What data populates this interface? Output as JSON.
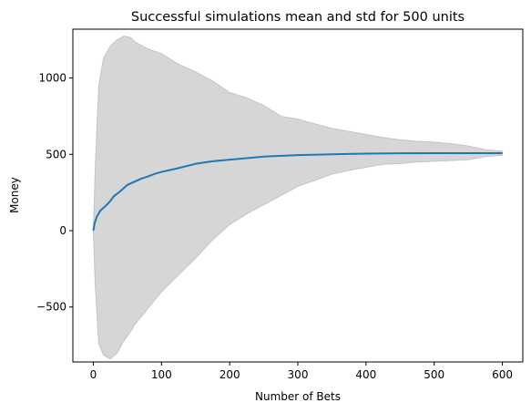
{
  "chart_data": {
    "type": "line",
    "title": "Successful simulations mean and std for 500 units",
    "xlabel": "Number of Bets",
    "ylabel": "Money",
    "xlim": [
      -30,
      630
    ],
    "ylim": [
      -860,
      1320
    ],
    "xticks": [
      0,
      100,
      200,
      300,
      400,
      500,
      600
    ],
    "yticks": [
      -500,
      0,
      500,
      1000
    ],
    "xtick_labels": [
      "0",
      "100",
      "200",
      "300",
      "400",
      "500",
      "600"
    ],
    "ytick_labels": [
      "−500",
      "0",
      "500",
      "1000"
    ],
    "grid": false,
    "legend": "none",
    "series": [
      {
        "kind": "line",
        "color": "#1f77b4",
        "x": [
          0,
          2,
          5,
          10,
          15,
          20,
          25,
          30,
          40,
          50,
          60,
          70,
          80,
          90,
          100,
          125,
          150,
          175,
          200,
          250,
          300,
          350,
          400,
          450,
          500,
          550,
          600
        ],
        "y": [
          0,
          50,
          90,
          130,
          150,
          170,
          195,
          225,
          260,
          300,
          320,
          340,
          355,
          372,
          385,
          410,
          438,
          455,
          465,
          485,
          495,
          500,
          505,
          507,
          508,
          508,
          508
        ]
      },
      {
        "kind": "band",
        "color": "#d6d6d6",
        "x": [
          0,
          3,
          8,
          15,
          25,
          35,
          45,
          55,
          60,
          80,
          100,
          125,
          150,
          175,
          200,
          225,
          250,
          275,
          300,
          325,
          350,
          375,
          400,
          425,
          450,
          475,
          500,
          525,
          550,
          575,
          600
        ],
        "upper": [
          0,
          430,
          950,
          1130,
          1210,
          1250,
          1275,
          1265,
          1240,
          1190,
          1160,
          1090,
          1040,
          980,
          905,
          870,
          820,
          750,
          730,
          700,
          670,
          650,
          630,
          610,
          595,
          585,
          580,
          570,
          555,
          530,
          520
        ],
        "lower": [
          0,
          -370,
          -740,
          -815,
          -840,
          -800,
          -720,
          -660,
          -620,
          -510,
          -400,
          -290,
          -180,
          -60,
          40,
          110,
          170,
          230,
          290,
          330,
          370,
          395,
          415,
          435,
          440,
          450,
          455,
          460,
          465,
          485,
          495
        ]
      }
    ]
  }
}
